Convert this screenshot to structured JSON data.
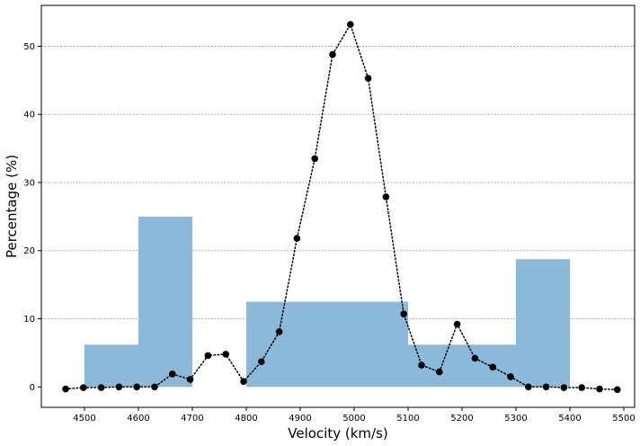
{
  "chart_data": {
    "type": "bar",
    "title": "",
    "xlabel": "Velocity (km/s)",
    "ylabel": "Percentage (%)",
    "xlim": [
      4420,
      5520
    ],
    "ylim": [
      -3,
      56
    ],
    "grid": "horizontal-dotted",
    "legend": "none",
    "xticks": [
      4500,
      4600,
      4700,
      4800,
      4900,
      5000,
      5100,
      5200,
      5300,
      5400,
      5500
    ],
    "yticks": [
      0,
      10,
      20,
      30,
      40,
      50
    ],
    "histogram": {
      "color": "#8ab9d9",
      "bins": [
        {
          "x0": 4500,
          "x1": 4600,
          "value": 6.2
        },
        {
          "x0": 4600,
          "x1": 4700,
          "value": 25.0
        },
        {
          "x0": 4800,
          "x1": 5100,
          "value": 12.5
        },
        {
          "x0": 5100,
          "x1": 5300,
          "value": 6.2
        },
        {
          "x0": 5300,
          "x1": 5400,
          "value": 18.75
        }
      ]
    },
    "curve": {
      "style": "dotted-line-with-markers",
      "color": "#000000",
      "x": [
        4465,
        4498,
        4531,
        4564,
        4597,
        4630,
        4663,
        4696,
        4729,
        4762,
        4795,
        4828,
        4861,
        4894,
        4927,
        4960,
        4993,
        5026,
        5059,
        5092,
        5125,
        5158,
        5191,
        5224,
        5257,
        5290,
        5323,
        5356,
        5389,
        5422,
        5455,
        5488
      ],
      "y": [
        -0.3,
        -0.1,
        -0.1,
        0.0,
        0.0,
        0.0,
        1.9,
        1.1,
        4.6,
        4.8,
        0.8,
        3.7,
        8.1,
        21.8,
        33.5,
        48.8,
        53.2,
        45.3,
        27.9,
        10.7,
        3.2,
        2.2,
        9.2,
        4.2,
        2.9,
        1.5,
        0.0,
        0.0,
        -0.1,
        -0.1,
        -0.3,
        -0.4
      ]
    }
  }
}
